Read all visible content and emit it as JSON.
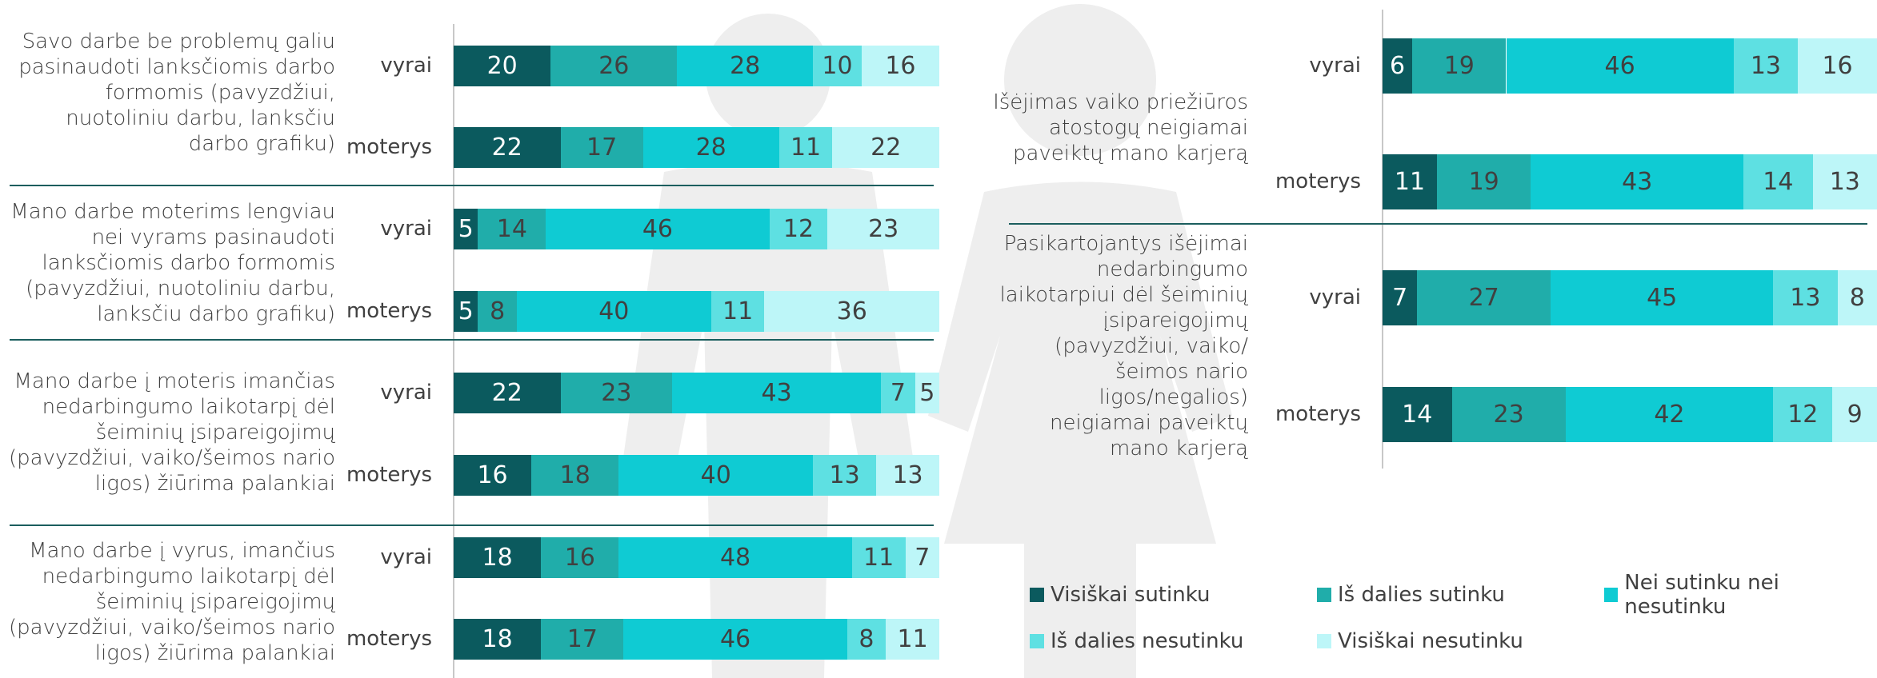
{
  "chart_data": [
    {
      "type": "bar",
      "xlim": [
        0,
        100
      ],
      "groups": [
        "Savo darbe be problemų galiu pasinaudoti lanksčiomis darbo formomis (pavyzdžiui, nuotoliniu darbu, lanksčiu darbo grafiku)",
        "Mano darbe moterims lengviau nei vyrams pasinaudoti lanksčiomis darbo formomis (pavyzdžiui, nuotoliniu darbu, lanksčiu darbo grafiku)",
        "Mano darbe į moteris imančias nedarbingumo laikotarpį dėl šeiminių įsipareigojimų (pavyzdžiui, vaiko/šeimos nario ligos) žiūrima palankiai",
        "Mano darbe į vyrus, imančius nedarbingumo laikotarpį dėl šeiminių įsipareigojimų (pavyzdžiui, vaiko/šeimos nario ligos) žiūrima palankiai"
      ],
      "categories": [
        "vyrai",
        "moterys",
        "vyrai",
        "moterys",
        "vyrai",
        "moterys",
        "vyrai",
        "moterys"
      ],
      "series": [
        {
          "name": "Visiškai sutinku",
          "color": "#0b5a5e",
          "values": [
            20,
            22,
            5,
            5,
            22,
            16,
            18,
            18
          ]
        },
        {
          "name": "Iš dalies sutinku",
          "color": "#20adaa",
          "values": [
            26,
            17,
            14,
            8,
            23,
            18,
            16,
            17
          ]
        },
        {
          "name": "Nei sutinku nei nesutinku",
          "color": "#0fcbd3",
          "values": [
            28,
            28,
            46,
            40,
            43,
            40,
            48,
            46
          ]
        },
        {
          "name": "Iš dalies nesutinku",
          "color": "#5ee0e2",
          "values": [
            10,
            11,
            12,
            11,
            7,
            13,
            11,
            8
          ]
        },
        {
          "name": "Visiškai nesutinku",
          "color": "#bdf6f8",
          "values": [
            16,
            22,
            23,
            36,
            5,
            13,
            7,
            11
          ]
        }
      ]
    },
    {
      "type": "bar",
      "xlim": [
        0,
        100
      ],
      "groups": [
        "Išėjimas vaiko priežiūros atostogų neigiamai paveiktų mano karjerą",
        "Pasikartojantys išėjimai nedarbingumo laikotarpiui dėl šeiminių įsipareigojimų (pavyzdžiui, vaiko/šeimos nario ligos/negalios) neigiamai paveiktų mano karjerą"
      ],
      "categories": [
        "vyrai",
        "moterys",
        "vyrai",
        "moterys"
      ],
      "series": [
        {
          "color": "#0b5a5e",
          "values": [
            6,
            11,
            7,
            14
          ]
        },
        {
          "color": "#20adaa",
          "values": [
            19,
            19,
            27,
            23
          ]
        },
        {
          "color": "#0fcbd3",
          "values": [
            46,
            43,
            45,
            42
          ]
        },
        {
          "color": "#5ee0e2",
          "values": [
            13,
            14,
            13,
            12
          ]
        },
        {
          "color": "#bdf6f8",
          "values": [
            16,
            13,
            8,
            9
          ]
        }
      ]
    }
  ]
}
